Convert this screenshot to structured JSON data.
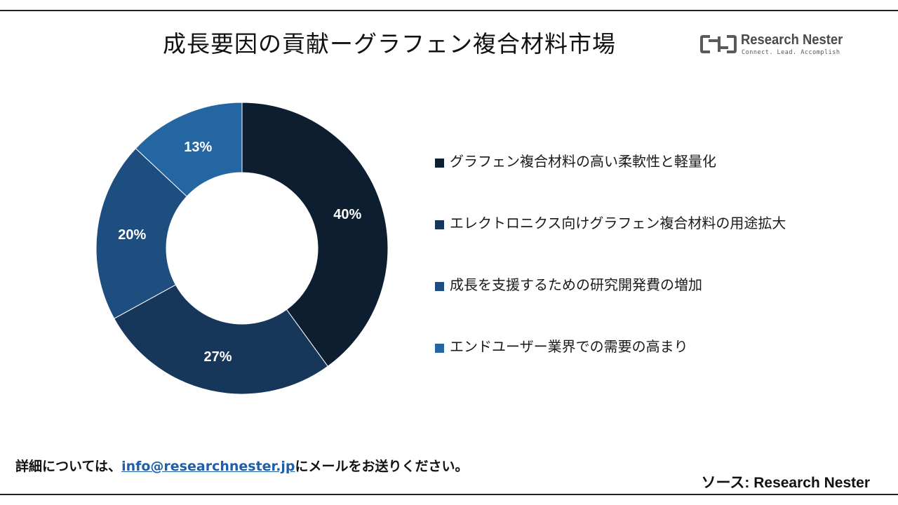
{
  "title": "成長要因の貢献ーグラフェン複合材料市場",
  "logo": {
    "name": "Research Nester",
    "tagline": "Connect. Lead. Accomplish",
    "icon": "research-nester-logo-icon",
    "color": "#5a5a5a"
  },
  "chart_data": {
    "type": "pie",
    "donut": true,
    "categories": [
      "グラフェン複合材料の高い柔軟性と軽量化",
      "エレクトロニクス向けグラフェン複合材料の用途拡大",
      "成長を支援するための研究開発費の増加",
      "エンドユーザー業界での需要の高まり"
    ],
    "values": [
      40,
      27,
      20,
      13
    ],
    "value_labels": [
      "40%",
      "27%",
      "20%",
      "13%"
    ],
    "colors": [
      "#0d1e30",
      "#17375a",
      "#1d4e7f",
      "#2466a2"
    ],
    "legend_position": "right"
  },
  "footer": {
    "contact_prefix": "詳細については、",
    "contact_email": "info@researchnester.jp",
    "contact_suffix": "にメールをお送りください。",
    "source": "ソース: Research  Nester"
  }
}
